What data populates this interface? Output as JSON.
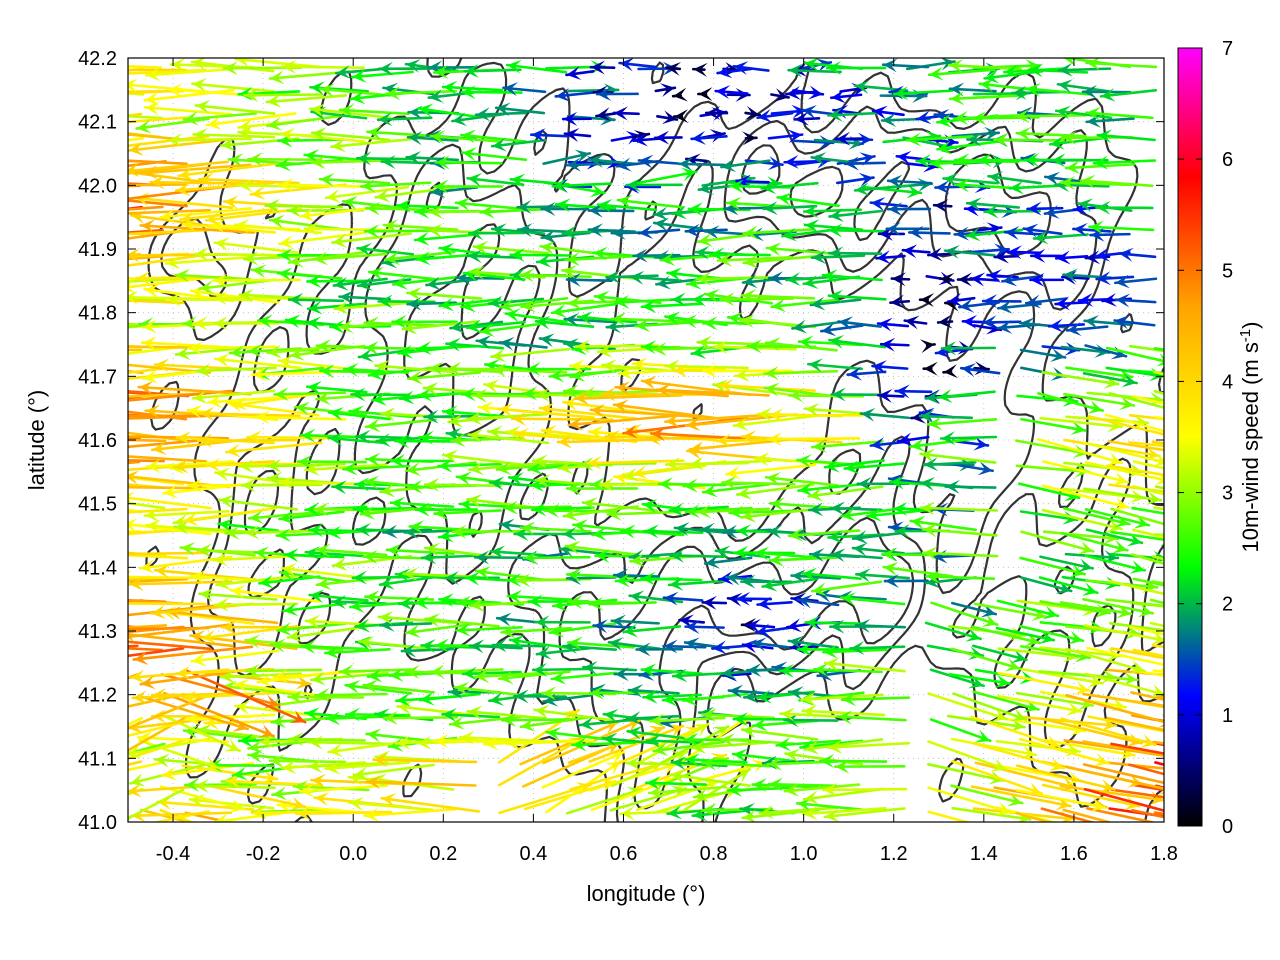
{
  "chart_data": {
    "type": "quiver",
    "xlabel": "longitude (°)",
    "ylabel": "latitude (°)",
    "xlim": [
      -0.5,
      1.8
    ],
    "ylim": [
      41.0,
      42.2
    ],
    "xticks": [
      -0.4,
      -0.2,
      0.0,
      0.2,
      0.4,
      0.6,
      0.8,
      1.0,
      1.2,
      1.4,
      1.6,
      1.8
    ],
    "xtick_labels": [
      "-0.4",
      "-0.2",
      "0.0",
      "0.2",
      "0.4",
      "0.6",
      "0.8",
      "1.0",
      "1.2",
      "1.4",
      "1.6",
      "1.8"
    ],
    "yticks": [
      41.0,
      41.1,
      41.2,
      41.3,
      41.4,
      41.5,
      41.6,
      41.7,
      41.8,
      41.9,
      42.0,
      42.1,
      42.2
    ],
    "ytick_labels": [
      "41.0",
      "41.1",
      "41.2",
      "41.3",
      "41.4",
      "41.5",
      "41.6",
      "41.7",
      "41.8",
      "41.9",
      "42.0",
      "42.1",
      "42.2"
    ],
    "grid": true,
    "colorbar": {
      "label_main": "10m-wind speed (m s",
      "label_sup": "-1",
      "label_close": ")",
      "range": [
        0,
        7
      ],
      "ticks": [
        "0",
        "1",
        "2",
        "3",
        "4",
        "5",
        "6",
        "7"
      ],
      "colors": [
        "#000000",
        "#0000ff",
        "#00ff00",
        "#ffff00",
        "#ffa500",
        "#ff0000",
        "#ff00ff"
      ]
    },
    "wind_field_description": "Predominantly easterly winds (arrows pointing west); strong 4-6 m/s flow in the western part and south-east corner, weak 0-1.5 m/s winds in the north-centre and around longitude 1.3",
    "contour_color": "#333333"
  }
}
